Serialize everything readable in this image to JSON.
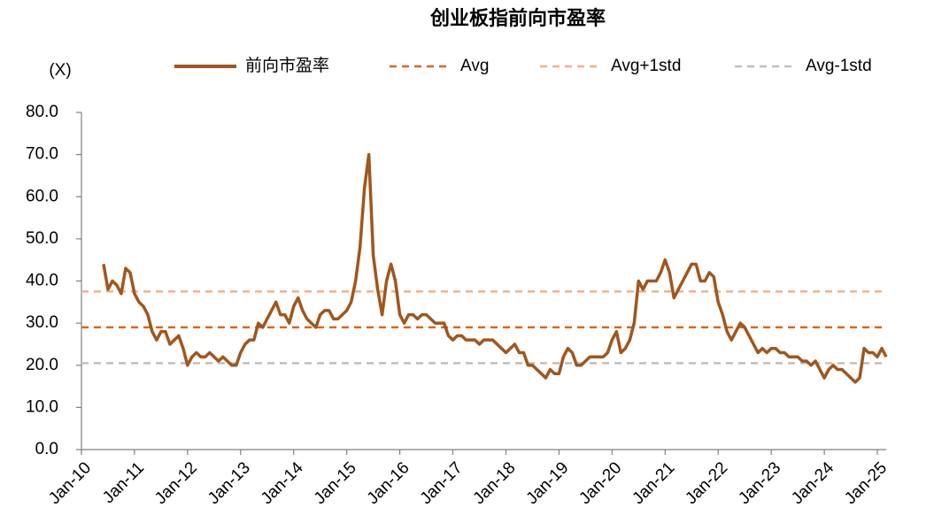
{
  "chart_data": {
    "type": "line",
    "title": "创业板指前向市盈率",
    "y_unit_label": "(X)",
    "x": [
      "2010-06",
      "2010-07",
      "2010-08",
      "2010-09",
      "2010-10",
      "2010-11",
      "2010-12",
      "2011-01",
      "2011-02",
      "2011-03",
      "2011-04",
      "2011-05",
      "2011-06",
      "2011-07",
      "2011-08",
      "2011-09",
      "2011-10",
      "2011-11",
      "2011-12",
      "2012-01",
      "2012-02",
      "2012-03",
      "2012-04",
      "2012-05",
      "2012-06",
      "2012-07",
      "2012-08",
      "2012-09",
      "2012-10",
      "2012-11",
      "2012-12",
      "2013-01",
      "2013-02",
      "2013-03",
      "2013-04",
      "2013-05",
      "2013-06",
      "2013-07",
      "2013-08",
      "2013-09",
      "2013-10",
      "2013-11",
      "2013-12",
      "2014-01",
      "2014-02",
      "2014-03",
      "2014-04",
      "2014-05",
      "2014-06",
      "2014-07",
      "2014-08",
      "2014-09",
      "2014-10",
      "2014-11",
      "2014-12",
      "2015-01",
      "2015-02",
      "2015-03",
      "2015-04",
      "2015-05",
      "2015-06",
      "2015-07",
      "2015-08",
      "2015-09",
      "2015-10",
      "2015-11",
      "2015-12",
      "2016-01",
      "2016-02",
      "2016-03",
      "2016-04",
      "2016-05",
      "2016-06",
      "2016-07",
      "2016-08",
      "2016-09",
      "2016-10",
      "2016-11",
      "2016-12",
      "2017-01",
      "2017-02",
      "2017-03",
      "2017-04",
      "2017-05",
      "2017-06",
      "2017-07",
      "2017-08",
      "2017-09",
      "2017-10",
      "2017-11",
      "2017-12",
      "2018-01",
      "2018-02",
      "2018-03",
      "2018-04",
      "2018-05",
      "2018-06",
      "2018-07",
      "2018-08",
      "2018-09",
      "2018-10",
      "2018-11",
      "2018-12",
      "2019-01",
      "2019-02",
      "2019-03",
      "2019-04",
      "2019-05",
      "2019-06",
      "2019-07",
      "2019-08",
      "2019-09",
      "2019-10",
      "2019-11",
      "2019-12",
      "2020-01",
      "2020-02",
      "2020-03",
      "2020-04",
      "2020-05",
      "2020-06",
      "2020-07",
      "2020-08",
      "2020-09",
      "2020-10",
      "2020-11",
      "2020-12",
      "2021-01",
      "2021-02",
      "2021-03",
      "2021-04",
      "2021-05",
      "2021-06",
      "2021-07",
      "2021-08",
      "2021-09",
      "2021-10",
      "2021-11",
      "2021-12",
      "2022-01",
      "2022-02",
      "2022-03",
      "2022-04",
      "2022-05",
      "2022-06",
      "2022-07",
      "2022-08",
      "2022-09",
      "2022-10",
      "2022-11",
      "2022-12",
      "2023-01",
      "2023-02",
      "2023-03",
      "2023-04",
      "2023-05",
      "2023-06",
      "2023-07",
      "2023-08",
      "2023-09",
      "2023-10",
      "2023-11",
      "2023-12",
      "2024-01",
      "2024-02",
      "2024-03",
      "2024-04",
      "2024-05",
      "2024-06",
      "2024-07",
      "2024-08",
      "2024-09",
      "2024-10",
      "2024-11",
      "2024-12",
      "2025-01",
      "2025-02",
      "2025-03"
    ],
    "series": [
      {
        "name": "前向市盈率",
        "color": "#a0561c",
        "values": [
          44,
          38,
          40,
          39,
          37,
          43,
          42,
          37,
          35,
          34,
          32,
          28,
          26,
          28,
          28,
          25,
          26,
          27,
          24,
          20,
          22,
          23,
          22,
          22,
          23,
          22,
          21,
          22,
          21,
          20,
          20,
          23,
          25,
          26,
          26,
          30,
          29,
          31,
          33,
          35,
          32,
          32,
          30,
          34,
          36,
          33,
          31,
          30,
          29,
          32,
          33,
          33,
          31,
          31,
          32,
          33,
          35,
          40,
          48,
          62,
          70,
          46,
          38,
          32,
          40,
          44,
          40,
          32,
          30,
          32,
          32,
          31,
          32,
          32,
          31,
          30,
          30,
          30,
          27,
          26,
          27,
          27,
          26,
          26,
          26,
          25,
          26,
          26,
          26,
          25,
          24,
          23,
          24,
          25,
          23,
          23,
          20,
          20,
          19,
          18,
          17,
          19,
          18,
          18,
          22,
          24,
          23,
          20,
          20,
          21,
          22,
          22,
          22,
          22,
          23,
          26,
          28,
          23,
          24,
          26,
          30,
          40,
          38,
          40,
          40,
          40,
          42,
          45,
          42,
          36,
          38,
          40,
          42,
          44,
          44,
          40,
          40,
          42,
          41,
          35,
          32,
          28,
          26,
          28,
          30,
          29,
          27,
          25,
          23,
          24,
          23,
          24,
          24,
          23,
          23,
          22,
          22,
          22,
          21,
          21,
          20,
          21,
          19,
          17,
          19,
          20,
          19,
          19,
          18,
          17,
          16,
          17,
          24,
          23,
          23,
          22,
          24,
          22
        ]
      }
    ],
    "reference_lines": [
      {
        "name": "Avg",
        "value": 29,
        "color": "#d9661f"
      },
      {
        "name": "Avg+1std",
        "value": 37.5,
        "color": "#f4b183"
      },
      {
        "name": "Avg-1std",
        "value": 20.5,
        "color": "#bfbfbf"
      }
    ],
    "xlim": [
      "2010-01",
      "2025-03"
    ],
    "xticks": [
      {
        "value": "2010-01",
        "label": "Jan-10"
      },
      {
        "value": "2011-01",
        "label": "Jan-11"
      },
      {
        "value": "2012-01",
        "label": "Jan-12"
      },
      {
        "value": "2013-01",
        "label": "Jan-13"
      },
      {
        "value": "2014-01",
        "label": "Jan-14"
      },
      {
        "value": "2015-01",
        "label": "Jan-15"
      },
      {
        "value": "2016-01",
        "label": "Jan-16"
      },
      {
        "value": "2017-01",
        "label": "Jan-17"
      },
      {
        "value": "2018-01",
        "label": "Jan-18"
      },
      {
        "value": "2019-01",
        "label": "Jan-19"
      },
      {
        "value": "2020-01",
        "label": "Jan-20"
      },
      {
        "value": "2021-01",
        "label": "Jan-21"
      },
      {
        "value": "2022-01",
        "label": "Jan-22"
      },
      {
        "value": "2023-01",
        "label": "Jan-23"
      },
      {
        "value": "2024-01",
        "label": "Jan-24"
      },
      {
        "value": "2025-01",
        "label": "Jan-25"
      }
    ],
    "ylim": [
      0,
      80
    ],
    "yticks": [
      {
        "value": 0,
        "label": "0.0"
      },
      {
        "value": 10,
        "label": "10.0"
      },
      {
        "value": 20,
        "label": "20.0"
      },
      {
        "value": 30,
        "label": "30.0"
      },
      {
        "value": 40,
        "label": "40.0"
      },
      {
        "value": 50,
        "label": "50.0"
      },
      {
        "value": 60,
        "label": "60.0"
      },
      {
        "value": 70,
        "label": "70.0"
      },
      {
        "value": 80,
        "label": "80.0"
      }
    ],
    "grid": false
  }
}
